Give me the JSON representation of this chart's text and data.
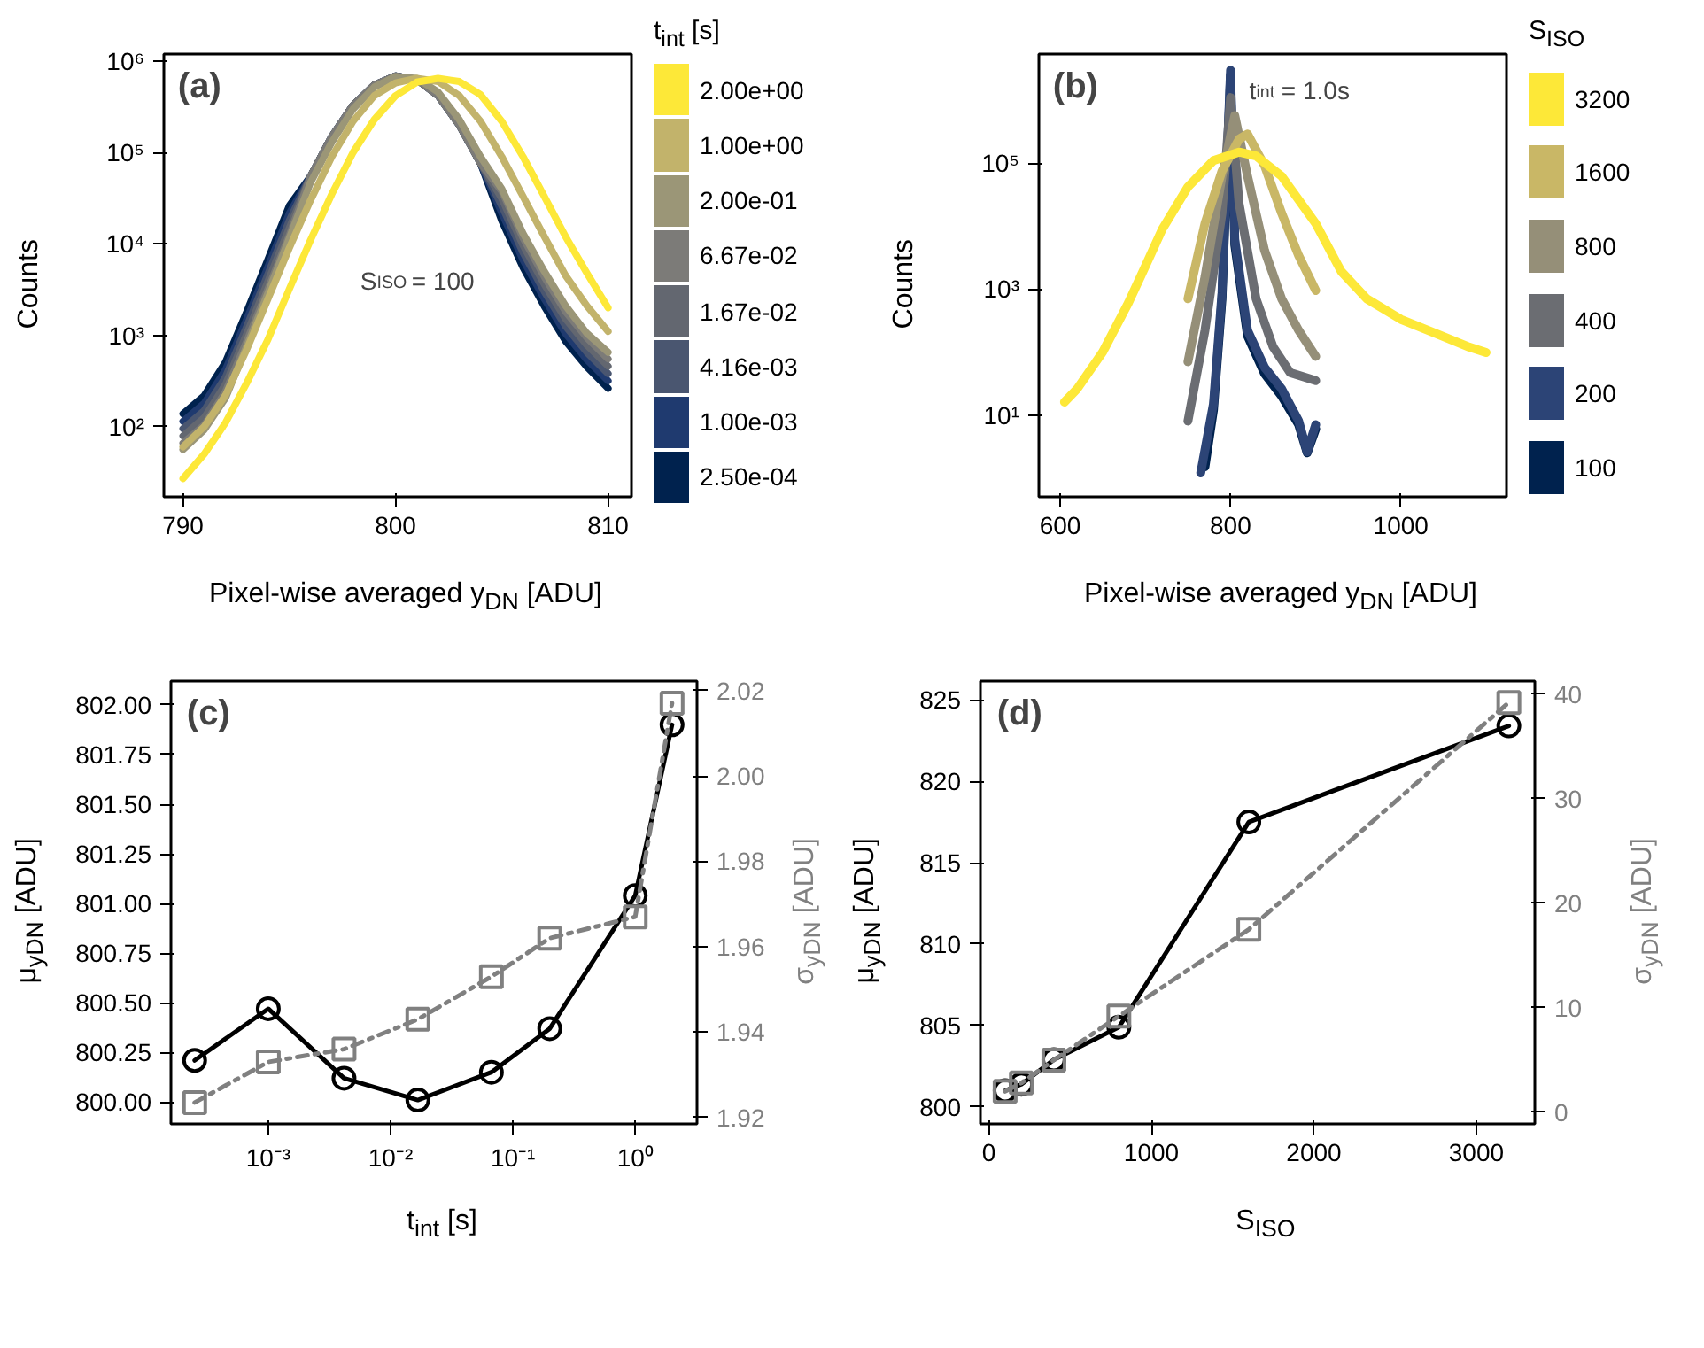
{
  "chart_data": [
    {
      "type": "line",
      "xlabel": "Pixel-wise averaged y$_{DN}$ [ADU]",
      "ylabel": "Counts",
      "legend_title": "t$_{int}$ [s]",
      "log": "y",
      "legend": "right",
      "grid": false,
      "annotations": [
        "(a)",
        "S$_{ISO}$ = 100"
      ],
      "xlim": [
        789.1,
        811.1
      ],
      "ylim": [
        17,
        1200000
      ],
      "xticks": [
        790,
        800,
        810
      ],
      "yticks": [
        {
          "value": 100,
          "label": "10²"
        },
        {
          "value": 1000,
          "label": "10³"
        },
        {
          "value": 10000,
          "label": "10⁴"
        },
        {
          "value": 100000,
          "label": "10⁵"
        },
        {
          "value": 1000000,
          "label": "10⁶"
        }
      ],
      "x": [
        790,
        791,
        792,
        793,
        794,
        795,
        796,
        797,
        798,
        799,
        800,
        801,
        802,
        803,
        804,
        805,
        806,
        807,
        808,
        809,
        810
      ],
      "series": [
        {
          "name": "2.50e-04",
          "color": "#00224e",
          "values": [
            138,
            218,
            508,
            1810,
            6800,
            26100,
            55000,
            150000,
            330000,
            550000,
            690000,
            630000,
            420000,
            200000,
            76000,
            17900,
            5500,
            2070,
            860,
            450,
            262
          ]
        },
        {
          "name": "1.00e-03",
          "color": "#1f3a6f",
          "values": [
            114,
            180,
            420,
            1500,
            5640,
            21600,
            55000,
            150000,
            330000,
            550000,
            690000,
            630000,
            420000,
            200000,
            76000,
            21700,
            6670,
            2500,
            1040,
            540,
            317
          ]
        },
        {
          "name": "4.16e-03",
          "color": "#4a5670",
          "values": [
            95,
            150,
            350,
            1250,
            4700,
            18000,
            55000,
            150000,
            330000,
            550000,
            690000,
            630000,
            420000,
            200000,
            76000,
            26000,
            8000,
            3000,
            1250,
            650,
            380
          ]
        },
        {
          "name": "1.67e-02",
          "color": "#636770",
          "values": [
            79,
            125,
            290,
            1040,
            3900,
            14900,
            55000,
            150000,
            330000,
            550000,
            690000,
            630000,
            420000,
            200000,
            76000,
            31300,
            9640,
            3610,
            1510,
            780,
            458
          ]
        },
        {
          "name": "6.67e-02",
          "color": "#7c7b78",
          "values": [
            66,
            104,
            242,
            863,
            3240,
            12400,
            55000,
            150000,
            330000,
            550000,
            690000,
            630000,
            420000,
            200000,
            76000,
            37700,
            11600,
            4350,
            1810,
            940,
            551
          ]
        },
        {
          "name": "2.00e-01",
          "color": "#9b9677",
          "values": [
            56,
            92,
            205,
            760,
            2900,
            11500,
            47000,
            130000,
            300000,
            520000,
            680000,
            650000,
            460000,
            230000,
            90000,
            40000,
            13000,
            5000,
            2100,
            1050,
            650
          ]
        },
        {
          "name": "1.00e+00",
          "color": "#c2b36b",
          "values": [
            60,
            100,
            220,
            700,
            2500,
            9000,
            30000,
            90000,
            220000,
            420000,
            580000,
            650000,
            600000,
            420000,
            220000,
            90000,
            33000,
            12000,
            4500,
            2100,
            1100
          ]
        },
        {
          "name": "2.00e+00",
          "color": "#fde838",
          "values": [
            27,
            50,
            110,
            300,
            900,
            3200,
            11000,
            35000,
            100000,
            230000,
            420000,
            590000,
            650000,
            600000,
            430000,
            220000,
            90000,
            33000,
            12000,
            4800,
            2000
          ]
        }
      ]
    },
    {
      "type": "line",
      "xlabel": "Pixel-wise averaged y$_{DN}$ [ADU]",
      "ylabel": "Counts",
      "legend_title": "S$_{ISO}$",
      "log": "y",
      "legend": "right",
      "grid": false,
      "annotations": [
        "(b)",
        "t$_{int}$ = 1.0s"
      ],
      "xlim": [
        575,
        1124
      ],
      "ylim": [
        0.5,
        5400000
      ],
      "xticks": [
        600,
        800,
        1000
      ],
      "yticks": [
        {
          "value": 10,
          "label": "10¹"
        },
        {
          "value": 1000,
          "label": "10³"
        },
        {
          "value": 100000,
          "label": "10⁵"
        }
      ],
      "series": [
        {
          "name": "100",
          "color": "#00224e",
          "x": [
            770,
            780,
            790,
            800,
            805,
            820,
            840,
            860,
            880,
            890,
            900
          ],
          "values": [
            1.5,
            12,
            700,
            2500000,
            5000,
            180,
            45,
            20,
            7,
            2.5,
            6
          ]
        },
        {
          "name": "200",
          "color": "#2c4476",
          "x": [
            765,
            780,
            790,
            800,
            805,
            820,
            840,
            860,
            880,
            890,
            900
          ],
          "values": [
            1.2,
            15,
            880,
            3000000,
            6100,
            220,
            57,
            26,
            8,
            2.6,
            7
          ]
        },
        {
          "name": "400",
          "color": "#6b6d72",
          "x": [
            750,
            770,
            790,
            800,
            810,
            830,
            850,
            870,
            900
          ],
          "values": [
            8,
            220,
            16000,
            1100000,
            23000,
            700,
            120,
            47,
            35
          ]
        },
        {
          "name": "800",
          "color": "#958f78",
          "x": [
            750,
            770,
            790,
            805,
            820,
            840,
            860,
            880,
            900
          ],
          "values": [
            70,
            1550,
            62000,
            570000,
            62000,
            4100,
            700,
            220,
            85
          ]
        },
        {
          "name": "1600",
          "color": "#c9b766",
          "x": [
            750,
            770,
            790,
            810,
            820,
            840,
            860,
            880,
            900
          ],
          "values": [
            700,
            11000,
            75000,
            240000,
            290000,
            91000,
            16000,
            3400,
            950
          ]
        },
        {
          "name": "3200",
          "color": "#fde838",
          "x": [
            605,
            620,
            650,
            680,
            700,
            720,
            750,
            780,
            810,
            830,
            860,
            900,
            930,
            960,
            1000,
            1040,
            1080,
            1100
          ],
          "values": [
            16,
            26,
            100,
            600,
            2300,
            9000,
            42000,
            110000,
            150000,
            130000,
            62000,
            11000,
            1900,
            700,
            330,
            200,
            120,
            98
          ]
        }
      ]
    },
    {
      "type": "line",
      "xlabel": "t$_{int}$ [s]",
      "ylabel": "μ$_{yDN}$ [ADU]",
      "y2label": "σ$_{yDN}$ [ADU]",
      "log": "x",
      "grid": false,
      "annotations": [
        "(c)"
      ],
      "xlim": [
        0.00016,
        3.2
      ],
      "ylim": [
        799.89,
        802.12
      ],
      "y2lim": [
        1.9185,
        2.0222
      ],
      "xticks": [
        {
          "value": 0.001,
          "label": "10⁻³"
        },
        {
          "value": 0.01,
          "label": "10⁻²"
        },
        {
          "value": 0.1,
          "label": "10⁻¹"
        },
        {
          "value": 1,
          "label": "10⁰"
        }
      ],
      "yticks": [
        {
          "value": 800,
          "label": "800.00"
        },
        {
          "value": 800.25,
          "label": "800.25"
        },
        {
          "value": 800.5,
          "label": "800.50"
        },
        {
          "value": 800.75,
          "label": "800.75"
        },
        {
          "value": 801,
          "label": "801.00"
        },
        {
          "value": 801.25,
          "label": "801.25"
        },
        {
          "value": 801.5,
          "label": "801.50"
        },
        {
          "value": 801.75,
          "label": "801.75"
        },
        {
          "value": 802,
          "label": "802.00"
        }
      ],
      "y2ticks": [
        1.92,
        1.94,
        1.96,
        1.98,
        {
          "value": 2.0,
          "label": "2.00"
        },
        2.02
      ],
      "x": [
        0.00025,
        0.001,
        0.00416,
        0.0167,
        0.0667,
        0.2,
        1.0,
        2.0
      ],
      "series": [
        {
          "color": "#000000",
          "marker": "circle",
          "line_style": "solid",
          "values": [
            800.21,
            800.47,
            800.12,
            800.01,
            800.15,
            800.37,
            801.04,
            801.9
          ]
        },
        {
          "color": "#808080",
          "marker": "square",
          "line_style": "dashdot",
          "axis": "y2",
          "values": [
            1.9235,
            1.933,
            1.936,
            1.943,
            1.953,
            1.962,
            1.967,
            2.017
          ]
        }
      ]
    },
    {
      "type": "line",
      "xlabel": "S$_{ISO}$",
      "ylabel": "μ$_{yDN}$ [ADU]",
      "y2label": "σ$_{yDN}$ [ADU]",
      "grid": false,
      "annotations": [
        "(d)"
      ],
      "xlim": [
        -52,
        3360
      ],
      "ylim": [
        798.96,
        826.15
      ],
      "y2lim": [
        -1.11,
        41.25
      ],
      "xticks": [
        0,
        1000,
        2000,
        3000
      ],
      "yticks": [
        800,
        805,
        810,
        815,
        820,
        825
      ],
      "y2ticks": [
        0,
        10,
        20,
        30,
        40
      ],
      "x": [
        100,
        200,
        400,
        800,
        1600,
        3200
      ],
      "series": [
        {
          "color": "#000000",
          "marker": "circle",
          "line_style": "solid",
          "values": [
            801.0,
            801.4,
            802.9,
            804.9,
            817.5,
            823.4
          ]
        },
        {
          "color": "#808080",
          "marker": "square",
          "line_style": "dashdot",
          "axis": "y2",
          "values": [
            2.0,
            2.8,
            5.0,
            9.2,
            17.5,
            39.2
          ]
        }
      ]
    }
  ]
}
